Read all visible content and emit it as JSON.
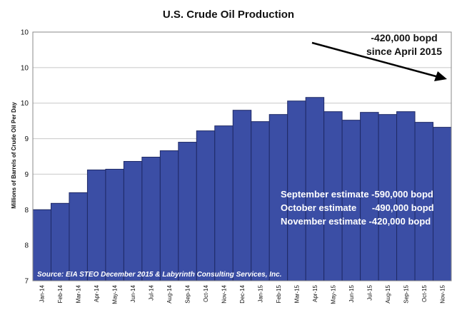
{
  "chart_data": {
    "type": "bar",
    "title": "U.S. Crude Oil Production",
    "ylabel": "Millions of Barrels of Crude Oil Per Day",
    "xlabel": "",
    "ylim": [
      7,
      10.5
    ],
    "yticks": [
      7,
      7.5,
      8,
      8.5,
      9,
      9.5,
      10,
      10.5
    ],
    "ytick_labels": [
      "7",
      "8",
      "8",
      "9",
      "9",
      "10",
      "10",
      "10"
    ],
    "grid": true,
    "bar_color": "#3b4ea5",
    "categories": [
      "Jan-14",
      "Feb-14",
      "Mar-14",
      "Apr-14",
      "May-14",
      "Jun-14",
      "Jul-14",
      "Aug-14",
      "Sep-14",
      "Oct-14",
      "Nov-14",
      "Dec-14",
      "Jan-15",
      "Feb-15",
      "Mar-15",
      "Apr-15",
      "May-15",
      "Jun-15",
      "Jul-15",
      "Aug-15",
      "Sep-15",
      "Oct-15",
      "Nov-15"
    ],
    "values": [
      8.0,
      8.09,
      8.24,
      8.56,
      8.57,
      8.68,
      8.74,
      8.83,
      8.95,
      9.11,
      9.18,
      9.4,
      9.24,
      9.34,
      9.53,
      9.58,
      9.38,
      9.26,
      9.37,
      9.34,
      9.38,
      9.23,
      9.16
    ],
    "annotations": {
      "arrow_text": [
        "-420,000 bopd",
        "since April 2015"
      ],
      "estimates": [
        "September estimate -590,000 bopd",
        "October estimate      -490,000 bopd",
        "November estimate -420,000 bopd"
      ],
      "source": "Source: EIA STEO December 2015 & Labyrinth Consulting Services, Inc."
    }
  }
}
